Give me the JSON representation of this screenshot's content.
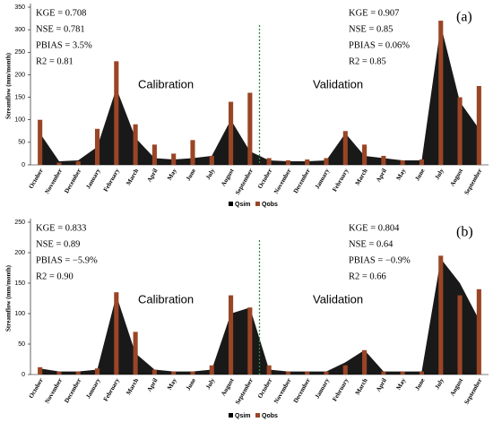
{
  "chart_data": [
    {
      "type": "bar-area",
      "panel_label": "(a)",
      "y_label": "Streamflow (mm/month)",
      "categories": [
        "October",
        "November",
        "December",
        "January",
        "February",
        "March",
        "April",
        "May",
        "June",
        "July",
        "August",
        "September",
        "October",
        "November",
        "December",
        "January",
        "February",
        "March",
        "April",
        "May",
        "June",
        "July",
        "August",
        "September"
      ],
      "series": [
        {
          "name": "Qsim",
          "color": "#000000",
          "values": [
            70,
            8,
            10,
            40,
            170,
            60,
            15,
            12,
            15,
            20,
            100,
            30,
            10,
            8,
            8,
            10,
            70,
            20,
            15,
            10,
            10,
            310,
            140,
            80
          ]
        },
        {
          "name": "Qobs",
          "color": "#9a4526",
          "values": [
            100,
            5,
            8,
            80,
            230,
            90,
            45,
            25,
            55,
            20,
            140,
            160,
            15,
            10,
            12,
            15,
            75,
            45,
            20,
            10,
            12,
            320,
            150,
            175
          ]
        }
      ],
      "ylim": [
        0,
        350
      ],
      "yticks": [
        0,
        50,
        100,
        150,
        200,
        250,
        300,
        350
      ],
      "stats_left": [
        "KGE = 0.708",
        "NSE = 0.781",
        "PBIAS = 3.5%",
        "R2 = 0.81"
      ],
      "stats_right": [
        "KGE = 0.907",
        "NSE = 0.85",
        "PBIAS = 0.06%",
        "R2 = 0.85"
      ],
      "periods": [
        "Calibration",
        "Validation"
      ]
    },
    {
      "type": "bar-area",
      "panel_label": "(b)",
      "y_label": "Streamflow (mm/month)",
      "categories": [
        "October",
        "November",
        "December",
        "January",
        "February",
        "March",
        "April",
        "May",
        "June",
        "July",
        "August",
        "September",
        "October",
        "November",
        "December",
        "January",
        "February",
        "March",
        "April",
        "May",
        "June",
        "July",
        "August",
        "September"
      ],
      "series": [
        {
          "name": "Qsim",
          "color": "#000000",
          "values": [
            10,
            5,
            5,
            8,
            130,
            35,
            8,
            5,
            5,
            8,
            100,
            110,
            8,
            5,
            5,
            5,
            20,
            40,
            5,
            5,
            5,
            190,
            150,
            90
          ]
        },
        {
          "name": "Qobs",
          "color": "#9a4526",
          "values": [
            12,
            5,
            5,
            10,
            135,
            70,
            8,
            5,
            5,
            15,
            130,
            110,
            15,
            5,
            5,
            5,
            15,
            40,
            5,
            5,
            5,
            195,
            130,
            140
          ]
        }
      ],
      "ylim": [
        0,
        250
      ],
      "yticks": [
        0,
        50,
        100,
        150,
        200,
        250
      ],
      "stats_left": [
        "KGE = 0.833",
        "NSE = 0.89",
        "PBIAS = −5.9%",
        "R2 = 0.90"
      ],
      "stats_right": [
        "KGE = 0.804",
        "NSE = 0.64",
        "PBIAS = −0.9%",
        "R2 = 0.66"
      ],
      "periods": [
        "Calibration",
        "Validation"
      ]
    }
  ]
}
